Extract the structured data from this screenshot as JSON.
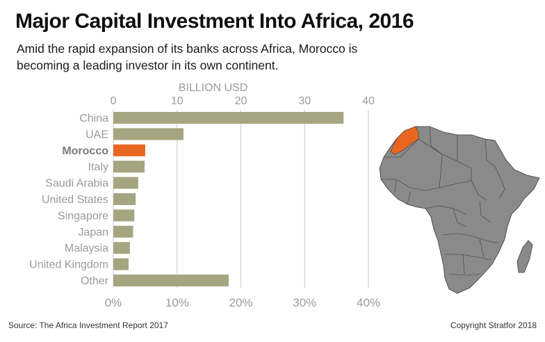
{
  "title": "Major Capital Investment Into Africa, 2016",
  "subtitle": "Amid the rapid expansion of its banks across Africa, Morocco is becoming a leading investor in its own continent.",
  "footer": {
    "source": "Source: The Africa Investment Report 2017",
    "copyright": "Copyright Stratfor 2018"
  },
  "colors": {
    "bar": "#a5a681",
    "highlight": "#e8661f",
    "grid": "#c8c8c8",
    "axis_text": "#9a9a9a",
    "map_land": "#8a8a8a",
    "map_border": "#3a3a3a"
  },
  "chart_data": {
    "type": "bar",
    "orientation": "horizontal",
    "title": "Major Capital Investment Into Africa, 2016",
    "top_axis_label": "BILLION USD",
    "top_ticks": [
      "0",
      "10",
      "20",
      "30",
      "40"
    ],
    "bottom_ticks": [
      "0%",
      "10%",
      "20%",
      "30%",
      "40%"
    ],
    "xlim": [
      0,
      40
    ],
    "grid": true,
    "categories": [
      "China",
      "UAE",
      "Morocco",
      "Italy",
      "Saudi Arabia",
      "United States",
      "Singapore",
      "Japan",
      "Malaysia",
      "United Kingdom",
      "Other"
    ],
    "values": [
      36.1,
      11.0,
      5.0,
      4.9,
      3.9,
      3.5,
      3.3,
      3.1,
      2.6,
      2.4,
      18.1
    ],
    "highlight": "Morocco"
  },
  "map": {
    "subject": "Africa",
    "highlighted_country": "Morocco"
  }
}
